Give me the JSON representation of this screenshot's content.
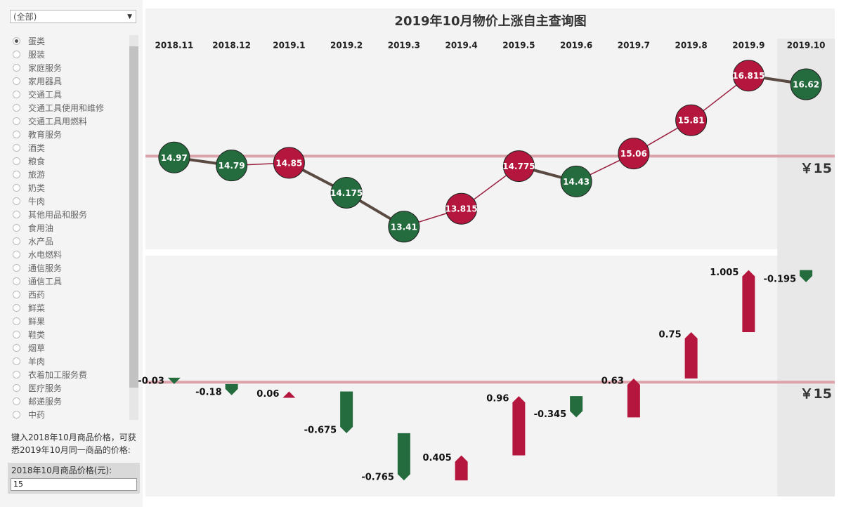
{
  "sidebar": {
    "dropdown": "(全部)",
    "categories": [
      "蛋类",
      "服装",
      "家庭服务",
      "家用器具",
      "交通工具",
      "交通工具使用和维修",
      "交通工具用燃料",
      "教育服务",
      "酒类",
      "粮食",
      "旅游",
      "奶类",
      "牛肉",
      "其他用品和服务",
      "食用油",
      "水产品",
      "水电燃料",
      "通信服务",
      "通信工具",
      "西药",
      "鲜菜",
      "鲜果",
      "鞋类",
      "烟草",
      "羊肉",
      "衣着加工服务费",
      "医疗服务",
      "邮递服务",
      "中药"
    ],
    "selected": "蛋类",
    "prompt": "键入2018年10月商品价格，可获悉2019年10月同一商品的价格:",
    "input_label": "2018年10月商品价格(元):"
  },
  "chart_data": [
    {
      "type": "line",
      "title": "2019年10月物价上涨自主查询图",
      "categories": [
        "2018.11",
        "2018.12",
        "2019.1",
        "2019.2",
        "2019.3",
        "2019.4",
        "2019.5",
        "2019.6",
        "2019.7",
        "2019.8",
        "2019.9",
        "2019.10"
      ],
      "values": [
        14.97,
        14.79,
        14.85,
        14.175,
        13.41,
        13.815,
        14.775,
        14.43,
        15.06,
        15.81,
        16.815,
        16.62
      ],
      "ylim": [
        12.9,
        17.65
      ],
      "up_color": "#b5163d",
      "down_color": "#246b3d",
      "highlight": "2019.10",
      "reference": {
        "value": 15,
        "label": "￥15"
      }
    },
    {
      "type": "waterfall",
      "base": 15,
      "values": [
        -0.03,
        -0.18,
        0.06,
        -0.675,
        -0.765,
        0.405,
        0.96,
        -0.345,
        0.63,
        0.75,
        1.005,
        -0.195
      ],
      "ylim": [
        13.15,
        17.05
      ],
      "up_color": "#b5163d",
      "down_color": "#246b3d",
      "reference": {
        "value": 15,
        "label": "￥15"
      }
    }
  ]
}
